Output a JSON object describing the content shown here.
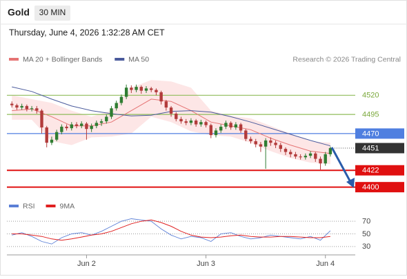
{
  "header": {
    "symbol": "Gold",
    "interval": "30 MIN",
    "timestamp": "Thursday, June 4, 2026 1:32:28 AM CET"
  },
  "chart_data": [
    {
      "type": "candlestick",
      "source": "Research © 2026 Trading Central",
      "up_color": "#2f7d32",
      "down_color": "#b23b3b",
      "xlim": [
        -16,
        54
      ],
      "ylim": [
        4388,
        4550
      ],
      "xticks": [
        {
          "value": 0,
          "label": "Jun 2"
        },
        {
          "value": 24,
          "label": "Jun 3"
        },
        {
          "value": 48,
          "label": "Jun 4"
        }
      ],
      "x": [
        -15,
        -14,
        -13,
        -12,
        -11,
        -10,
        -9,
        -8,
        -7,
        -6,
        -5,
        -4,
        -3,
        -2,
        -1,
        0,
        1,
        2,
        3,
        4,
        5,
        6,
        7,
        8,
        9,
        10,
        11,
        12,
        13,
        14,
        15,
        16,
        17,
        18,
        19,
        20,
        21,
        22,
        23,
        24,
        25,
        26,
        27,
        28,
        29,
        30,
        31,
        32,
        33,
        34,
        35,
        36,
        37,
        38,
        39,
        40,
        41,
        42,
        43,
        44,
        45,
        46,
        47,
        48,
        49
      ],
      "open": [
        4509,
        4507,
        4504,
        4506,
        4502,
        4503,
        4500,
        4478,
        4458,
        4462,
        4472,
        4479,
        4477,
        4482,
        4480,
        4483,
        4476,
        4480,
        4484,
        4486,
        4492,
        4503,
        4510,
        4518,
        4530,
        4527,
        4531,
        4526,
        4529,
        4527,
        4524,
        4512,
        4504,
        4496,
        4489,
        4486,
        4484,
        4487,
        4482,
        4485,
        4481,
        4468,
        4474,
        4479,
        4484,
        4478,
        4482,
        4474,
        4463,
        4460,
        4456,
        4453,
        4461,
        4458,
        4455,
        4450,
        4446,
        4443,
        4440,
        4439,
        4441,
        4444,
        4437,
        4431,
        4443
      ],
      "high": [
        4512,
        4509,
        4509,
        4508,
        4506,
        4506,
        4502,
        4480,
        4466,
        4475,
        4482,
        4482,
        4485,
        4485,
        4486,
        4485,
        4483,
        4487,
        4489,
        4495,
        4506,
        4513,
        4521,
        4534,
        4533,
        4534,
        4533,
        4532,
        4531,
        4529,
        4526,
        4514,
        4506,
        4498,
        4492,
        4489,
        4490,
        4489,
        4488,
        4487,
        4483,
        4477,
        4482,
        4487,
        4486,
        4485,
        4484,
        4476,
        4466,
        4463,
        4459,
        4464,
        4465,
        4461,
        4458,
        4452,
        4449,
        4446,
        4443,
        4444,
        4447,
        4446,
        4440,
        4446,
        4453
      ],
      "low": [
        4504,
        4501,
        4501,
        4499,
        4499,
        4496,
        4470,
        4452,
        4455,
        4460,
        4469,
        4474,
        4474,
        4477,
        4477,
        4462,
        4472,
        4477,
        4480,
        4483,
        4489,
        4500,
        4507,
        4515,
        4523,
        4524,
        4522,
        4523,
        4524,
        4520,
        4508,
        4500,
        4492,
        4486,
        4483,
        4481,
        4481,
        4479,
        4479,
        4478,
        4464,
        4465,
        4471,
        4476,
        4475,
        4475,
        4471,
        4460,
        4457,
        4452,
        4446,
        4424,
        4454,
        4451,
        4446,
        4442,
        4439,
        4437,
        4436,
        4436,
        4438,
        4433,
        4423,
        4428,
        4440
      ],
      "close": [
        4507,
        4504,
        4506,
        4502,
        4503,
        4500,
        4478,
        4458,
        4462,
        4472,
        4479,
        4477,
        4482,
        4480,
        4483,
        4476,
        4480,
        4484,
        4486,
        4492,
        4503,
        4510,
        4518,
        4530,
        4527,
        4531,
        4526,
        4529,
        4527,
        4524,
        4512,
        4504,
        4496,
        4489,
        4486,
        4484,
        4487,
        4482,
        4485,
        4481,
        4468,
        4474,
        4479,
        4484,
        4478,
        4482,
        4474,
        4463,
        4460,
        4456,
        4453,
        4461,
        4458,
        4455,
        4450,
        4446,
        4443,
        4440,
        4439,
        4441,
        4444,
        4437,
        4431,
        4443,
        4451
      ],
      "series": [
        {
          "name": "MA 20 + Bollinger Bands",
          "color": "#e57373",
          "band_color": "#fde2e2",
          "x": [
            -15,
            -11,
            -7,
            -3,
            1,
            5,
            9,
            13,
            17,
            21,
            25,
            29,
            33,
            37,
            41,
            45,
            49
          ],
          "values": [
            4500,
            4502,
            4492,
            4480,
            4480,
            4485,
            4500,
            4515,
            4512,
            4500,
            4485,
            4480,
            4475,
            4464,
            4455,
            4447,
            4444
          ],
          "upper": [
            4520,
            4515,
            4510,
            4500,
            4492,
            4500,
            4530,
            4540,
            4538,
            4530,
            4500,
            4493,
            4490,
            4480,
            4470,
            4460,
            4458
          ],
          "lower": [
            4488,
            4488,
            4460,
            4455,
            4465,
            4466,
            4470,
            4492,
            4485,
            4473,
            4468,
            4466,
            4458,
            4447,
            4438,
            4432,
            4430
          ]
        },
        {
          "name": "MA 50",
          "color": "#4a5a9c",
          "x": [
            -15,
            -11,
            -7,
            -3,
            1,
            5,
            9,
            13,
            17,
            21,
            25,
            29,
            33,
            37,
            41,
            45,
            49
          ],
          "values": [
            4531,
            4525,
            4515,
            4506,
            4500,
            4496,
            4493,
            4494,
            4499,
            4500,
            4498,
            4492,
            4485,
            4477,
            4469,
            4461,
            4454
          ]
        }
      ],
      "levels": [
        {
          "value": 4520,
          "color": "#8fbc5a",
          "kind": "line"
        },
        {
          "value": 4495,
          "color": "#8fbc5a",
          "kind": "line"
        },
        {
          "value": 4470,
          "color": "#4f7fe0",
          "kind": "box"
        },
        {
          "value": 4451,
          "color": "#333333",
          "kind": "current"
        },
        {
          "value": 4422,
          "color": "#e01010",
          "kind": "box"
        },
        {
          "value": 4400,
          "color": "#e01010",
          "kind": "box"
        }
      ]
    },
    {
      "type": "line",
      "xlim": [
        -16,
        54
      ],
      "ylim": [
        20,
        80
      ],
      "yticks": [
        30,
        50,
        70
      ],
      "series": [
        {
          "name": "RSI",
          "color": "#5b7fd6",
          "x": [
            -15,
            -13,
            -11,
            -9,
            -7,
            -5,
            -3,
            -1,
            1,
            3,
            5,
            7,
            9,
            11,
            13,
            15,
            17,
            19,
            21,
            23,
            25,
            27,
            29,
            31,
            33,
            35,
            37,
            39,
            41,
            43,
            45,
            47,
            49
          ],
          "values": [
            48,
            52,
            46,
            38,
            34,
            44,
            50,
            52,
            48,
            54,
            62,
            70,
            74,
            72,
            70,
            58,
            48,
            42,
            46,
            44,
            38,
            50,
            52,
            46,
            42,
            44,
            48,
            46,
            44,
            42,
            46,
            40,
            55
          ]
        },
        {
          "name": "9MA",
          "color": "#e02020",
          "x": [
            -15,
            -13,
            -11,
            -9,
            -7,
            -5,
            -3,
            -1,
            1,
            3,
            5,
            7,
            9,
            11,
            13,
            15,
            17,
            19,
            21,
            23,
            25,
            27,
            29,
            31,
            33,
            35,
            37,
            39,
            41,
            43,
            45,
            47,
            49
          ],
          "values": [
            50,
            50,
            48,
            46,
            42,
            40,
            42,
            45,
            48,
            50,
            54,
            60,
            66,
            70,
            72,
            68,
            62,
            54,
            48,
            45,
            44,
            45,
            47,
            48,
            46,
            45,
            45,
            46,
            46,
            45,
            44,
            44,
            46
          ]
        }
      ]
    }
  ]
}
